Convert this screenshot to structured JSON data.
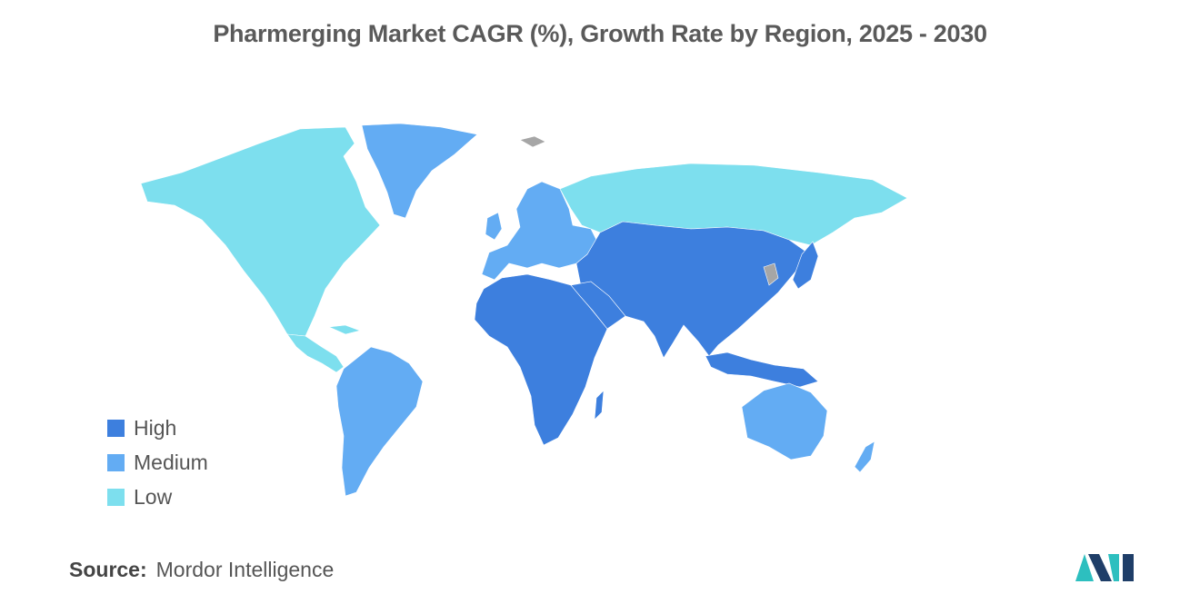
{
  "title": "Pharmerging Market CAGR (%), Growth Rate by Region, 2025 - 2030",
  "colors": {
    "high": "#3d7fde",
    "medium": "#63acf3",
    "low": "#7ddfee",
    "no_data": "#a6a6a6",
    "logo_dark": "#1f3e68",
    "logo_teal": "#2dbfbf"
  },
  "legend": {
    "items": [
      {
        "label": "High",
        "color": "#3d7fde"
      },
      {
        "label": "Medium",
        "color": "#63acf3"
      },
      {
        "label": "Low",
        "color": "#7ddfee"
      }
    ]
  },
  "regions": [
    {
      "name": "North America",
      "level": "Low"
    },
    {
      "name": "Europe",
      "level": "Medium"
    },
    {
      "name": "Russia",
      "level": "Low"
    },
    {
      "name": "Asia Pacific",
      "level": "High"
    },
    {
      "name": "Middle East & Africa",
      "level": "High"
    },
    {
      "name": "South America",
      "level": "Medium"
    },
    {
      "name": "Australia & New Zealand",
      "level": "Medium"
    },
    {
      "name": "Greenland",
      "level": "Medium"
    }
  ],
  "source": {
    "label": "Source:",
    "text": "Mordor Intelligence"
  }
}
